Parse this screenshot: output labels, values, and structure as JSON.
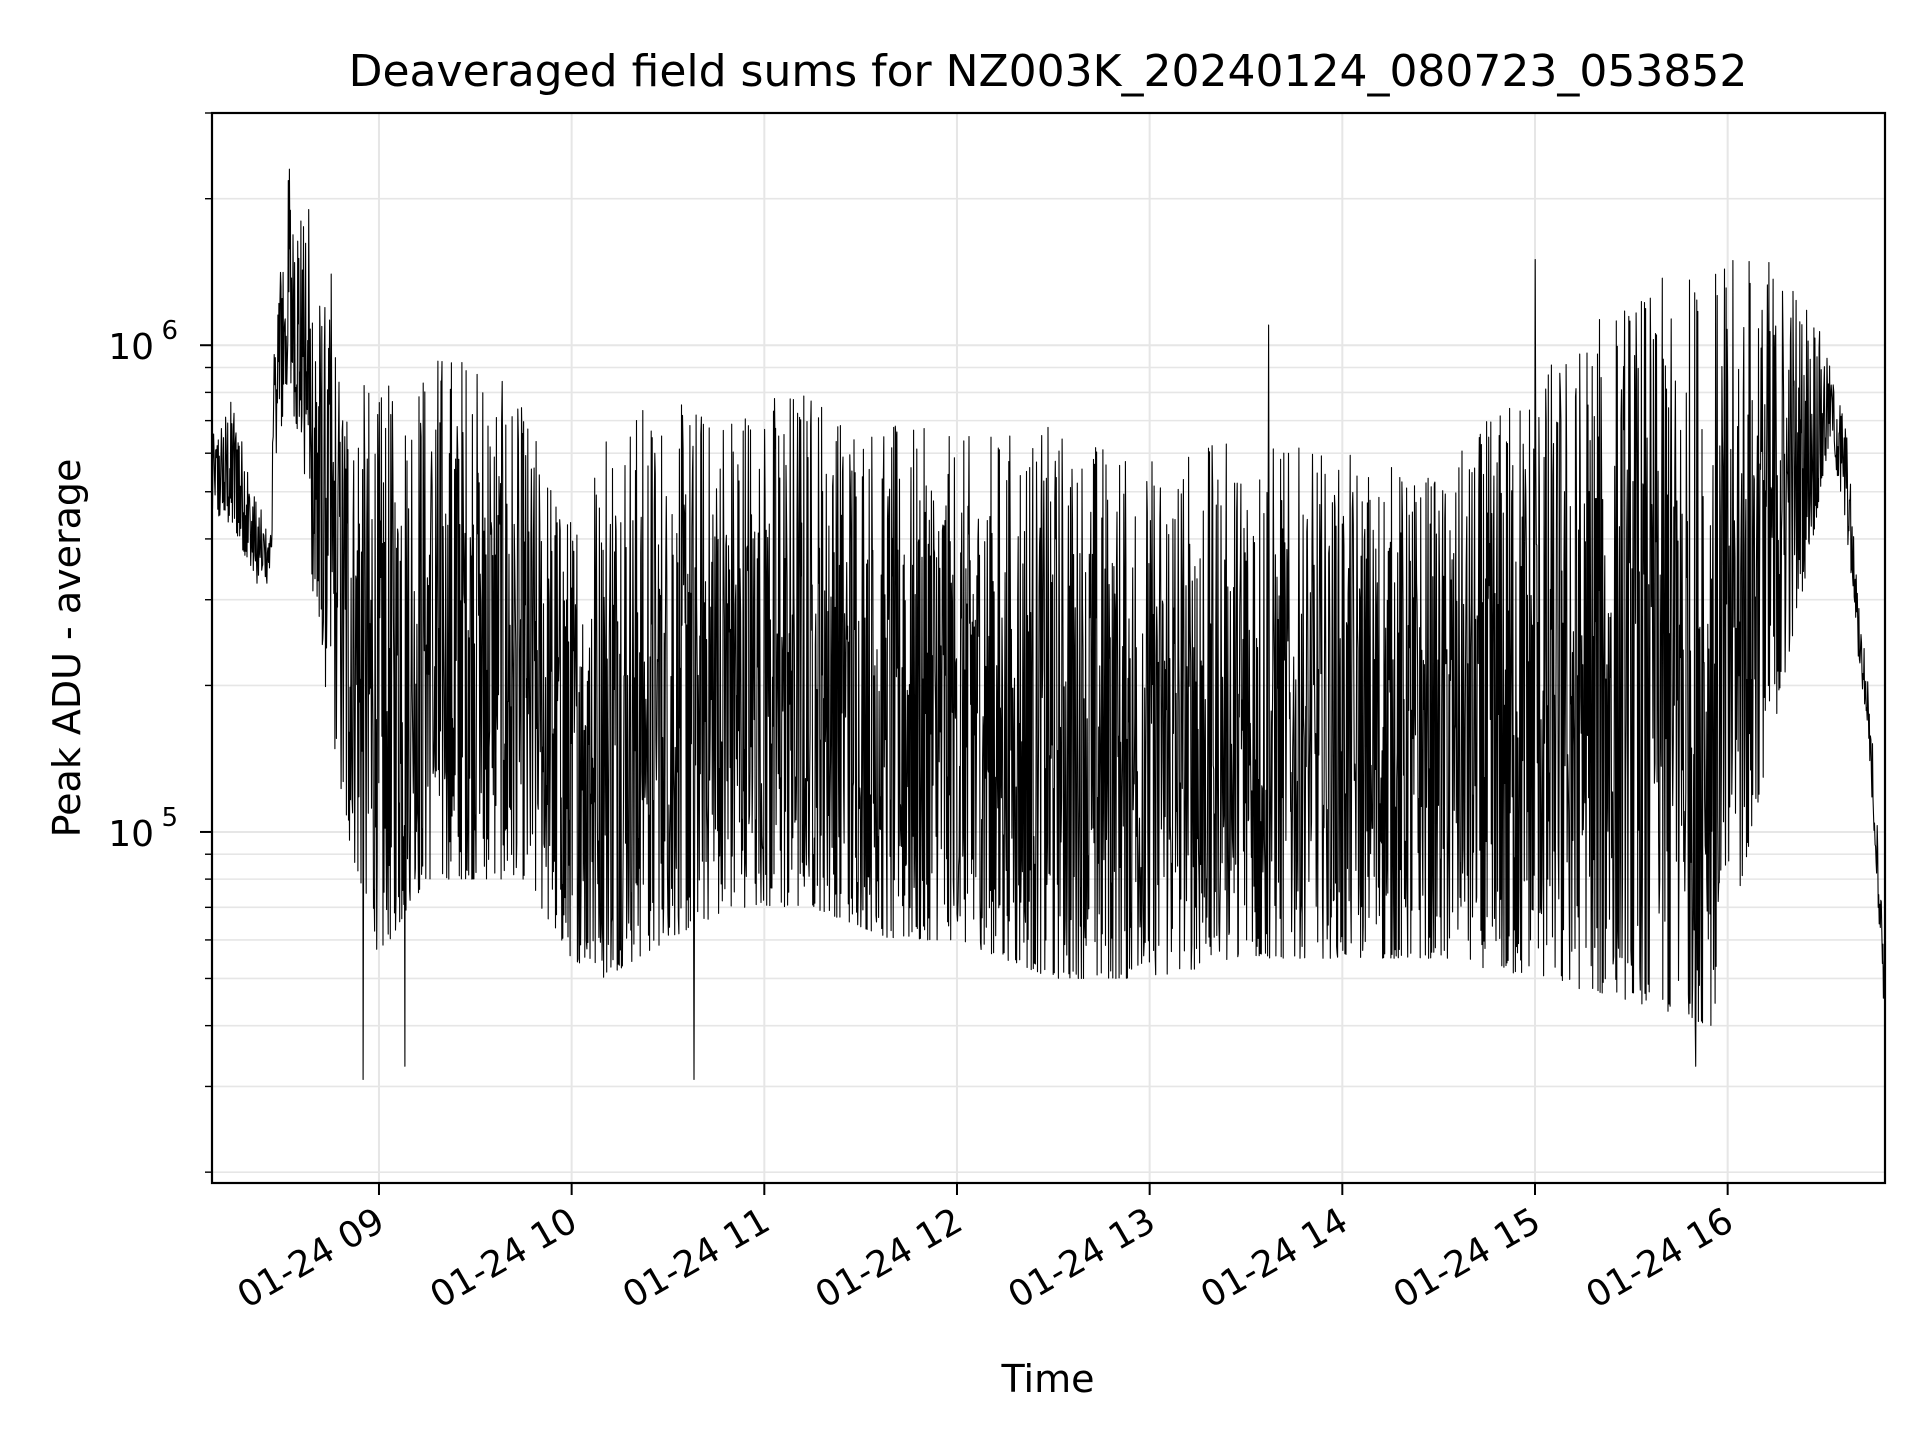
{
  "chart_data": {
    "type": "line",
    "title": "Deaveraged field sums for NZ003K_20240124_080723_053852",
    "xlabel": "Time",
    "ylabel": "Peak ADU - average",
    "x_axis_type": "time",
    "y_scale": "log",
    "xlim": [
      "2024-01-24 08:08",
      "2024-01-24 16:49"
    ],
    "ylim": [
      19000,
      3000000
    ],
    "x_ticks": [
      {
        "value": "2024-01-24 09:00",
        "label": "01-24 09"
      },
      {
        "value": "2024-01-24 10:00",
        "label": "01-24 10"
      },
      {
        "value": "2024-01-24 11:00",
        "label": "01-24 11"
      },
      {
        "value": "2024-01-24 12:00",
        "label": "01-24 12"
      },
      {
        "value": "2024-01-24 13:00",
        "label": "01-24 13"
      },
      {
        "value": "2024-01-24 14:00",
        "label": "01-24 14"
      },
      {
        "value": "2024-01-24 15:00",
        "label": "01-24 15"
      },
      {
        "value": "2024-01-24 16:00",
        "label": "01-24 16"
      }
    ],
    "y_ticks": [
      {
        "value": 100000,
        "base": "10",
        "exp": "5"
      },
      {
        "value": 1000000,
        "base": "10",
        "exp": "6"
      }
    ],
    "grid": true,
    "line_color": "#000000",
    "grid_color": "#e6e6e6",
    "series": [
      {
        "envelope": [
          {
            "t": "2024-01-24 08:08",
            "floor": 450000,
            "peak": 650000
          },
          {
            "t": "2024-01-24 08:15",
            "floor": 420000,
            "peak": 800000
          },
          {
            "t": "2024-01-24 08:22",
            "floor": 320000,
            "peak": 480000
          },
          {
            "t": "2024-01-24 08:26",
            "floor": 320000,
            "peak": 420000
          },
          {
            "t": "2024-01-24 08:28",
            "floor": 600000,
            "peak": 1400000
          },
          {
            "t": "2024-01-24 08:32",
            "floor": 800000,
            "peak": 2300000
          },
          {
            "t": "2024-01-24 08:36",
            "floor": 600000,
            "peak": 1900000
          },
          {
            "t": "2024-01-24 08:40",
            "floor": 280000,
            "peak": 1400000
          },
          {
            "t": "2024-01-24 08:50",
            "floor": 100000,
            "peak": 950000
          },
          {
            "t": "2024-01-24 09:00",
            "floor": 55000,
            "peak": 800000
          },
          {
            "t": "2024-01-24 09:15",
            "floor": 80000,
            "peak": 1000000
          },
          {
            "t": "2024-01-24 09:30",
            "floor": 80000,
            "peak": 1000000
          },
          {
            "t": "2024-01-24 09:45",
            "floor": 80000,
            "peak": 750000
          },
          {
            "t": "2024-01-24 10:00",
            "floor": 55000,
            "peak": 450000
          },
          {
            "t": "2024-01-24 10:10",
            "floor": 50000,
            "peak": 800000
          },
          {
            "t": "2024-01-24 10:30",
            "floor": 60000,
            "peak": 750000
          },
          {
            "t": "2024-01-24 10:50",
            "floor": 70000,
            "peak": 800000
          },
          {
            "t": "2024-01-24 11:15",
            "floor": 70000,
            "peak": 850000
          },
          {
            "t": "2024-01-24 11:40",
            "floor": 60000,
            "peak": 700000
          },
          {
            "t": "2024-01-24 12:00",
            "floor": 60000,
            "peak": 650000
          },
          {
            "t": "2024-01-24 12:30",
            "floor": 50000,
            "peak": 700000
          },
          {
            "t": "2024-01-24 13:00",
            "floor": 50000,
            "peak": 600000
          },
          {
            "t": "2024-01-24 13:30",
            "floor": 55000,
            "peak": 650000
          },
          {
            "t": "2024-01-24 14:00",
            "floor": 55000,
            "peak": 600000
          },
          {
            "t": "2024-01-24 14:30",
            "floor": 55000,
            "peak": 550000
          },
          {
            "t": "2024-01-24 15:00",
            "floor": 50000,
            "peak": 900000
          },
          {
            "t": "2024-01-24 15:30",
            "floor": 45000,
            "peak": 1300000
          },
          {
            "t": "2024-01-24 15:55",
            "floor": 40000,
            "peak": 1500000
          },
          {
            "t": "2024-01-24 16:10",
            "floor": 120000,
            "peak": 1600000
          },
          {
            "t": "2024-01-24 16:25",
            "floor": 350000,
            "peak": 1300000
          },
          {
            "t": "2024-01-24 16:32",
            "floor": 650000,
            "peak": 900000
          },
          {
            "t": "2024-01-24 16:37",
            "floor": 420000,
            "peak": 700000
          },
          {
            "t": "2024-01-24 16:40",
            "floor": 250000,
            "peak": 350000
          },
          {
            "t": "2024-01-24 16:44",
            "floor": 150000,
            "peak": 200000
          },
          {
            "t": "2024-01-24 16:49",
            "floor": 40000,
            "peak": 60000
          }
        ],
        "spikes": [
          {
            "t": "2024-01-24 08:32",
            "y": 2300000
          },
          {
            "t": "2024-01-24 08:38",
            "y": 1900000
          },
          {
            "t": "2024-01-24 08:45",
            "y": 1400000
          },
          {
            "t": "2024-01-24 08:55",
            "y": 31000
          },
          {
            "t": "2024-01-24 09:08",
            "y": 33000
          },
          {
            "t": "2024-01-24 10:38",
            "y": 31000
          },
          {
            "t": "2024-01-24 13:37",
            "y": 1100000
          },
          {
            "t": "2024-01-24 15:00",
            "y": 1500000
          },
          {
            "t": "2024-01-24 15:50",
            "y": 33000
          }
        ]
      }
    ]
  }
}
